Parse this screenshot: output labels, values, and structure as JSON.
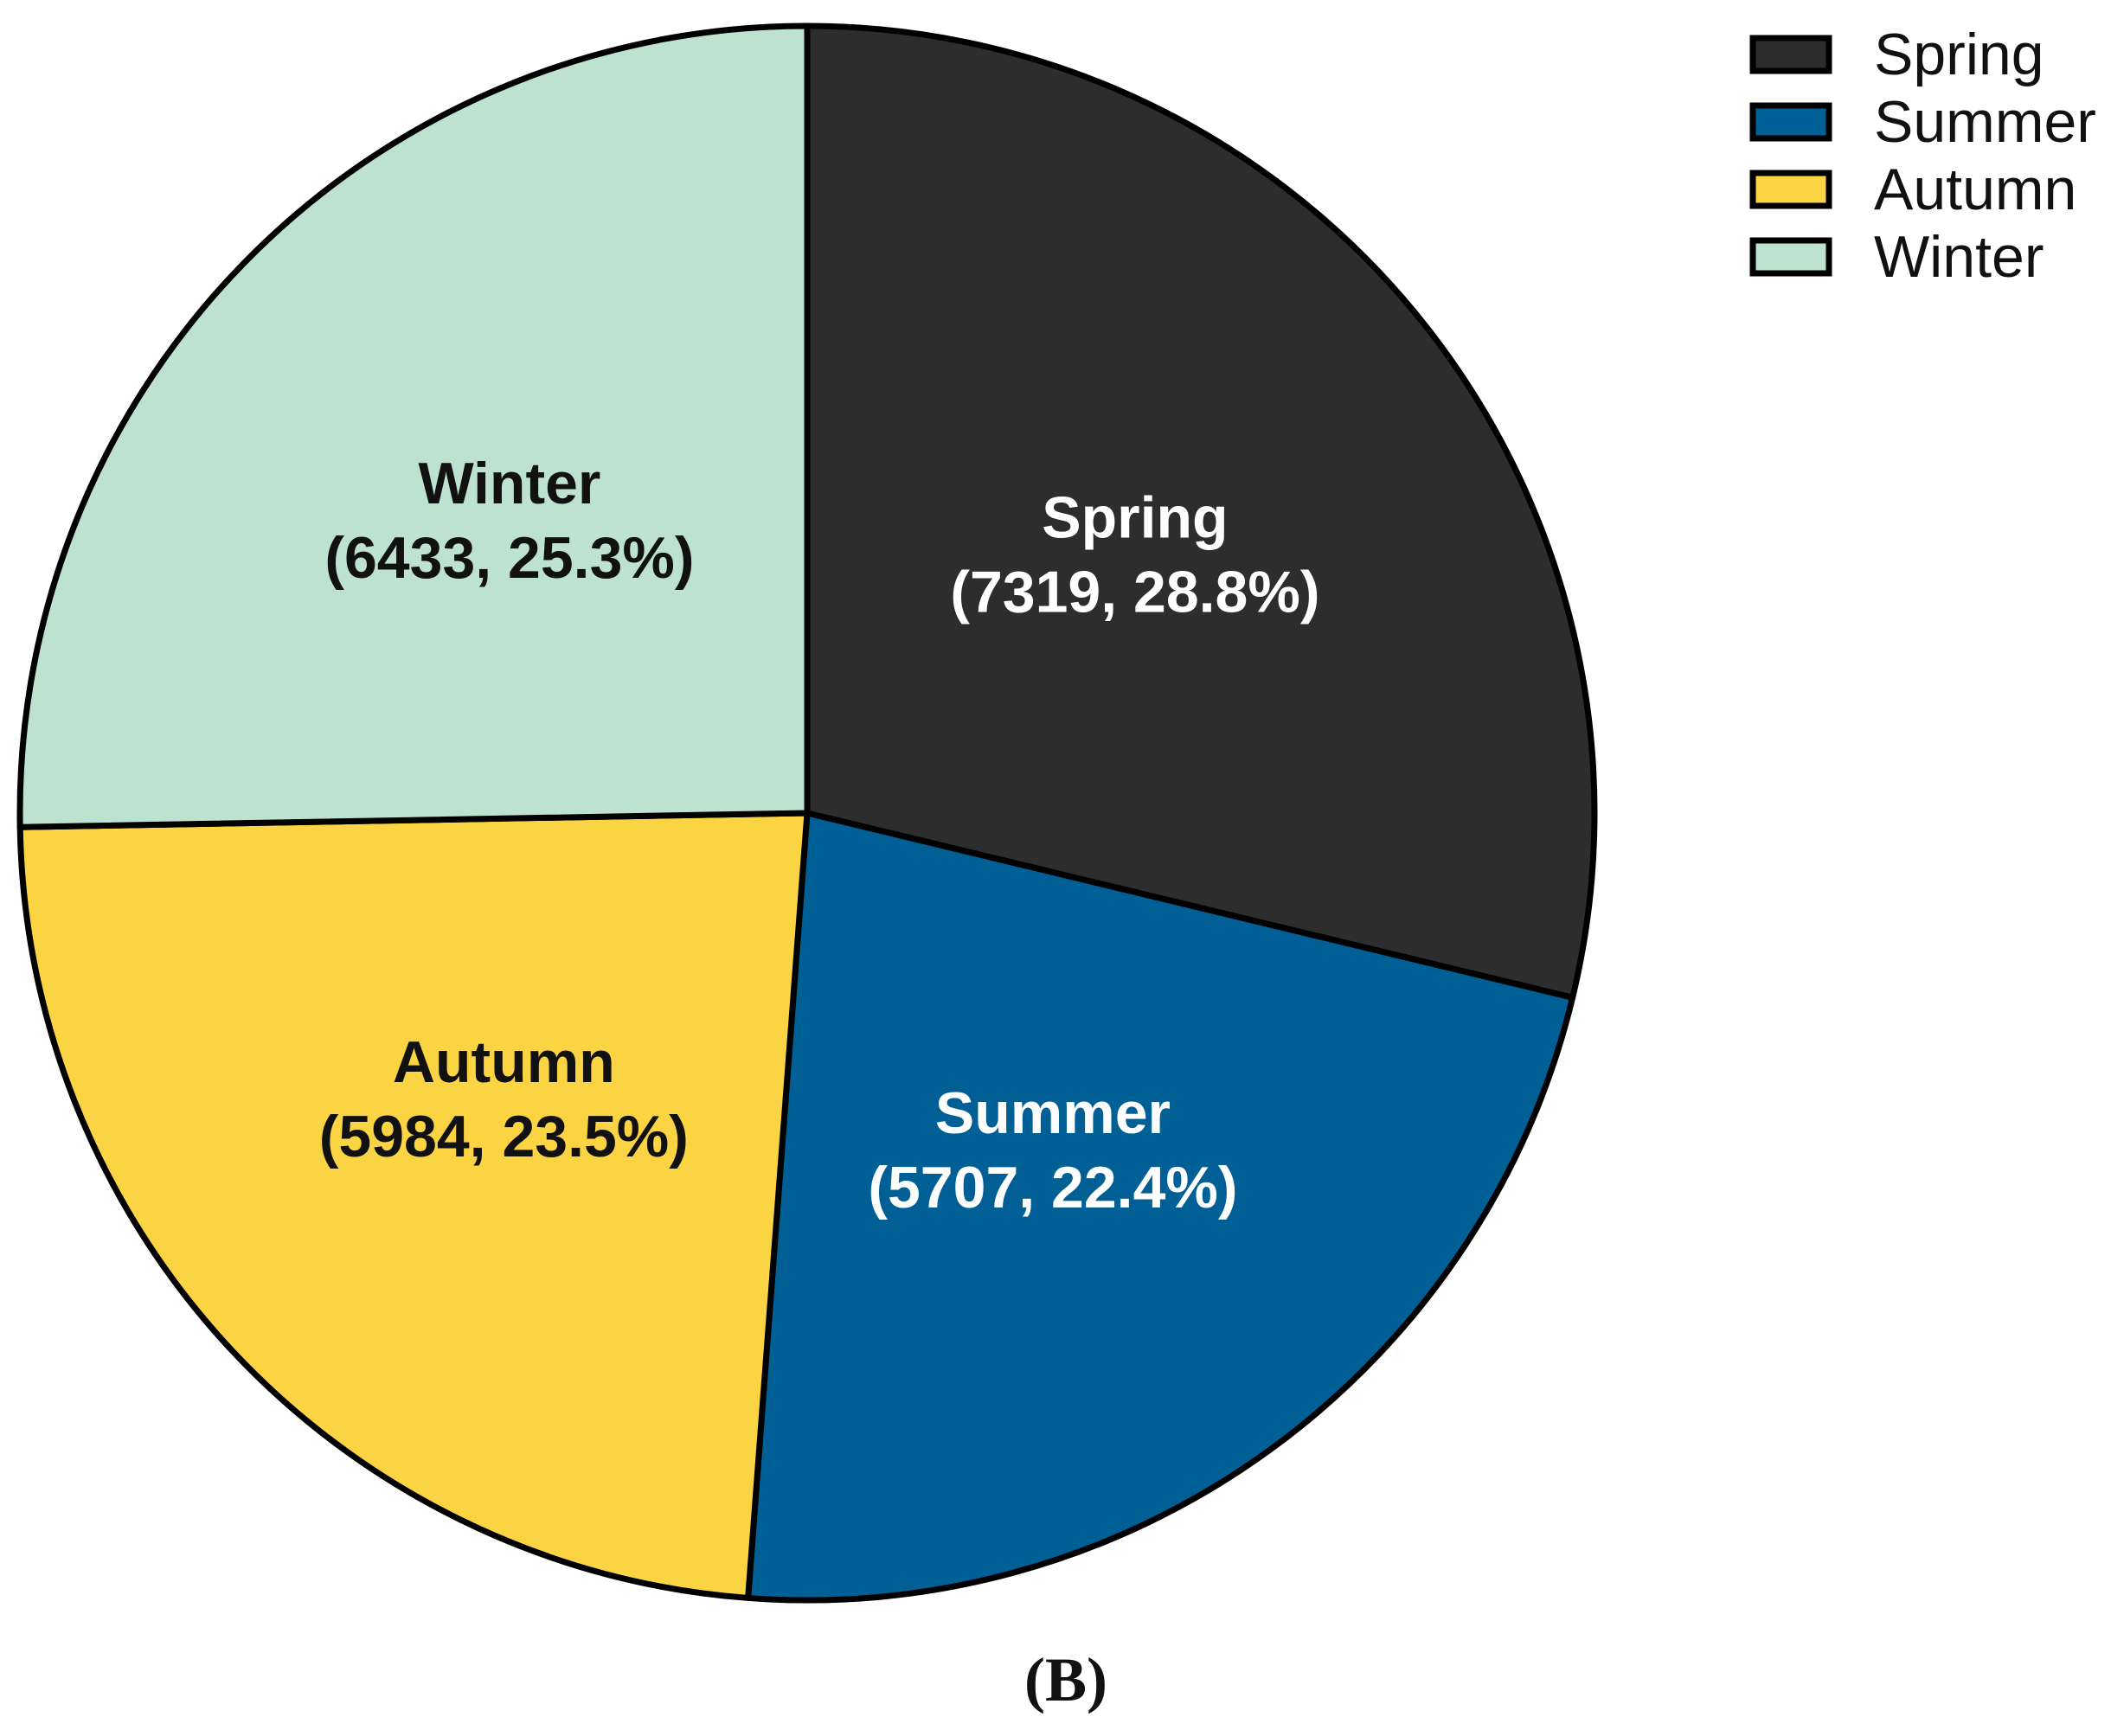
{
  "chart_data": {
    "type": "pie",
    "title": "",
    "panel_label": "(B)",
    "legend_position": "top-right",
    "slices": [
      {
        "label": "Spring",
        "value": 7319,
        "percent": "28.8%",
        "display": "(7319, 28.8%)",
        "color": "#2d2d2d",
        "text_color": "#ffffff"
      },
      {
        "label": "Summer",
        "value": 5707,
        "percent": "22.4%",
        "display": "(5707, 22.4%)",
        "color": "#006096",
        "text_color": "#ffffff"
      },
      {
        "label": "Autumn",
        "value": 5984,
        "percent": "23.5%",
        "display": "(5984, 23.5%)",
        "color": "#fbd444",
        "text_color": "#111111"
      },
      {
        "label": "Winter",
        "value": 6433,
        "percent": "25.3%",
        "display": "(6433, 25.3%)",
        "color": "#bde3d0",
        "text_color": "#111111"
      }
    ]
  }
}
